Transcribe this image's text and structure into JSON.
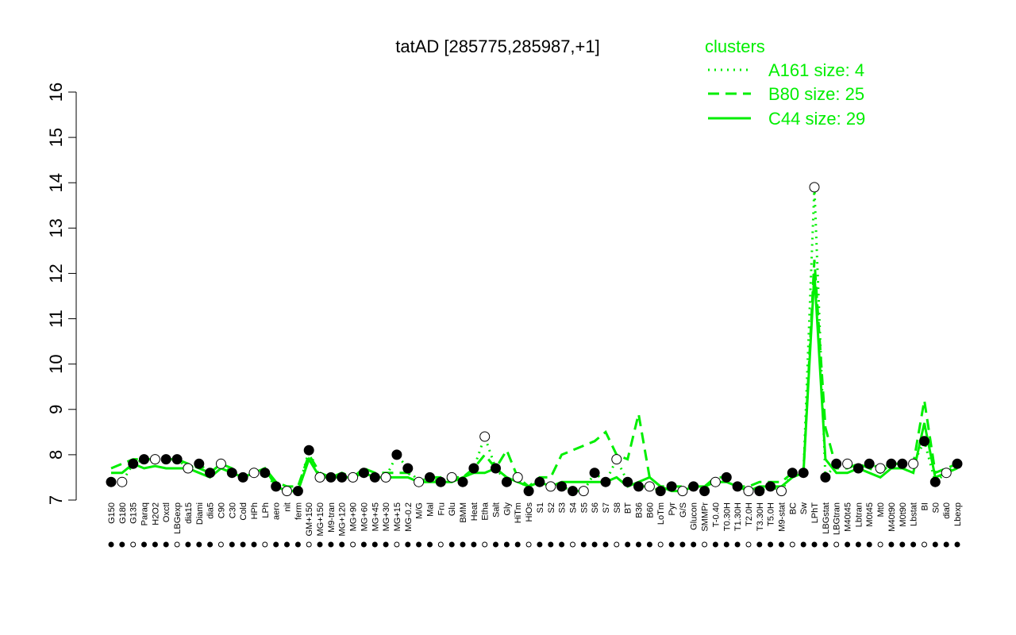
{
  "chart_data": {
    "type": "scatter",
    "title": "tatAD [285775,285987,+1]",
    "xlabel": "",
    "ylabel": "",
    "ylim": [
      7,
      16
    ],
    "yticks": [
      7,
      8,
      9,
      10,
      11,
      12,
      13,
      14,
      15,
      16
    ],
    "xtick_labels": [
      "G150",
      "G180",
      "G135",
      "Paraq",
      "H2O2",
      "Oxctl",
      "LBGexp",
      "dia15",
      "Diami",
      "dia5",
      "C90",
      "C30",
      "Cold",
      "HPh",
      "LPh",
      "aero",
      "nit",
      "ferm",
      "GM+150",
      "MG+150",
      "M9-tran",
      "MG+120",
      "MG+90",
      "MG+60",
      "MG+45",
      "MG+30",
      "MG+15",
      "MG-0.2",
      "M/G",
      "Mal",
      "Fru",
      "Glu",
      "BMM",
      "Heat",
      "Etha",
      "Salt",
      "Gly",
      "HiTm",
      "HiOs",
      "S1",
      "S2",
      "S3",
      "S4",
      "S5",
      "S6",
      "S7",
      "S8",
      "BT",
      "B36",
      "B60",
      "LoTm",
      "Pyr",
      "G/S",
      "Glucon",
      "SMMPr",
      "T-0.40",
      "T0.30H",
      "T1.30H",
      "T2.0H",
      "T3.30H",
      "T5.0H",
      "M9-stat",
      "BC",
      "Sw",
      "LPhT",
      "LBGstat",
      "LBGtran",
      "M40t45",
      "Lbtran",
      "M0t45",
      "Mt0",
      "M40t90",
      "M0t90",
      "Lbstat",
      "BI",
      "S0",
      "dia0",
      "Lbexp"
    ],
    "legend": {
      "title": "clusters",
      "position": "top-right",
      "entries": [
        {
          "label": "A161 size: 4",
          "style": "dotted"
        },
        {
          "label": "B80 size: 25",
          "style": "dashed"
        },
        {
          "label": "C44 size: 29",
          "style": "solid"
        }
      ]
    },
    "colors": {
      "series": "#00ee00",
      "points_filled": "#000000",
      "points_open": "#ffffff",
      "axis": "#000000"
    },
    "series": [
      {
        "name": "C44 size: 29",
        "values": [
          7.6,
          7.6,
          7.8,
          7.7,
          7.75,
          7.7,
          7.7,
          7.7,
          7.6,
          7.5,
          7.7,
          7.6,
          7.5,
          7.6,
          7.7,
          7.3,
          7.2,
          7.2,
          7.9,
          7.5,
          7.5,
          7.5,
          7.5,
          7.6,
          7.5,
          7.5,
          7.5,
          7.5,
          7.4,
          7.4,
          7.4,
          7.4,
          7.5,
          7.6,
          7.6,
          7.7,
          7.5,
          7.4,
          7.3,
          7.4,
          7.3,
          7.4,
          7.4,
          7.4,
          7.4,
          7.4,
          7.5,
          7.3,
          7.4,
          7.5,
          7.3,
          7.2,
          7.2,
          7.3,
          7.3,
          7.4,
          7.4,
          7.3,
          7.2,
          7.3,
          7.3,
          7.3,
          7.5,
          7.6,
          12.0,
          7.9,
          7.6,
          7.6,
          7.7,
          7.6,
          7.5,
          7.7,
          7.7,
          7.6,
          8.7,
          7.5,
          7.6,
          7.7
        ]
      },
      {
        "name": "B80 size: 25",
        "values": [
          7.7,
          7.8,
          7.9,
          7.9,
          7.9,
          7.9,
          7.9,
          7.8,
          7.7,
          7.6,
          7.8,
          7.7,
          7.5,
          7.6,
          7.7,
          7.4,
          7.3,
          7.3,
          8.0,
          7.6,
          7.5,
          7.6,
          7.5,
          7.7,
          7.6,
          7.6,
          7.6,
          7.6,
          7.4,
          7.5,
          7.5,
          7.5,
          7.5,
          7.7,
          8.0,
          7.7,
          8.1,
          7.5,
          7.3,
          7.5,
          7.5,
          8.0,
          8.1,
          8.2,
          8.3,
          8.5,
          8.0,
          7.9,
          8.9,
          7.5,
          7.3,
          7.3,
          7.3,
          7.3,
          7.3,
          7.5,
          7.5,
          7.3,
          7.3,
          7.4,
          7.4,
          7.4,
          7.6,
          7.6,
          12.3,
          8.6,
          7.7,
          7.7,
          7.8,
          7.7,
          7.6,
          7.8,
          7.8,
          7.8,
          9.2,
          7.6,
          7.7,
          7.8
        ]
      },
      {
        "name": "A161 size: 4",
        "values": [
          7.4,
          7.4,
          7.8,
          7.9,
          7.9,
          7.9,
          7.9,
          7.7,
          7.8,
          7.6,
          7.8,
          7.6,
          7.5,
          7.6,
          7.6,
          7.3,
          7.2,
          7.2,
          8.1,
          7.5,
          7.5,
          7.5,
          7.5,
          7.6,
          7.5,
          7.5,
          8.0,
          7.7,
          7.4,
          7.5,
          7.4,
          7.5,
          7.4,
          7.7,
          8.4,
          7.7,
          7.4,
          7.5,
          7.2,
          7.4,
          7.3,
          7.3,
          7.2,
          7.2,
          7.6,
          7.4,
          7.9,
          7.4,
          7.3,
          7.3,
          7.2,
          7.3,
          7.2,
          7.3,
          7.2,
          7.4,
          7.5,
          7.3,
          7.2,
          7.2,
          7.3,
          7.2,
          7.6,
          7.6,
          13.9,
          7.5,
          7.8,
          7.8,
          7.7,
          7.8,
          7.7,
          7.8,
          7.8,
          7.8,
          8.3,
          7.4,
          7.6,
          7.8
        ]
      }
    ]
  }
}
